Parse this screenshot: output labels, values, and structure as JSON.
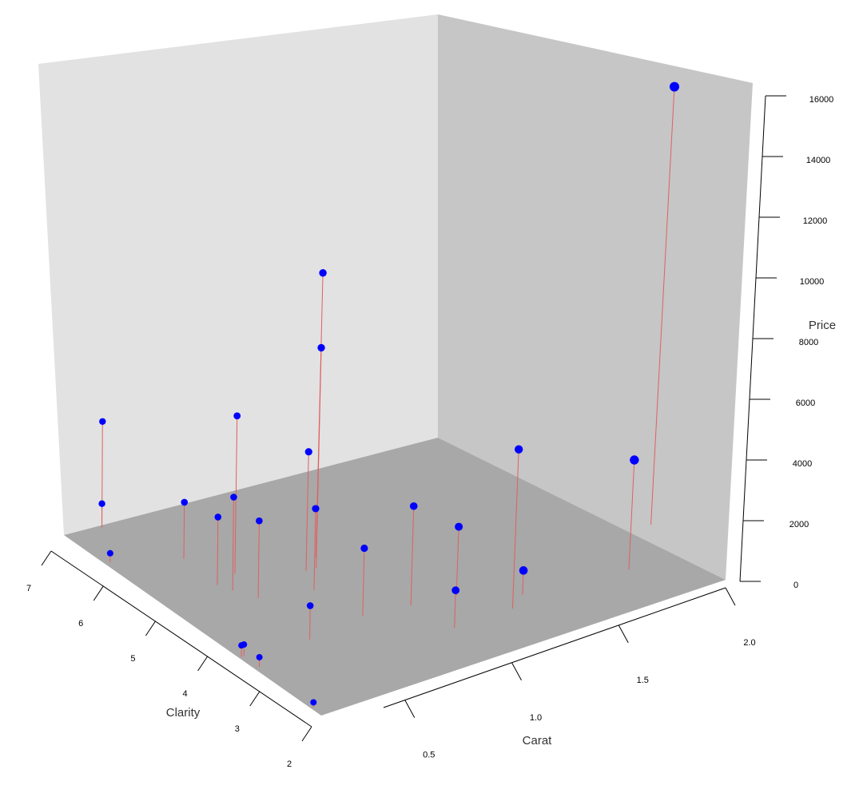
{
  "chart_data": {
    "type": "scatter3d",
    "xlabel": "Carat",
    "ylabel": "Clarity",
    "zlabel": "Price",
    "x_ticks": [
      "0.5",
      "1.0",
      "1.5",
      "2.0"
    ],
    "y_ticks": [
      "2",
      "3",
      "4",
      "5",
      "6",
      "7"
    ],
    "z_ticks": [
      "0",
      "2000",
      "4000",
      "6000",
      "8000",
      "10000",
      "12000",
      "14000",
      "16000"
    ],
    "xlim": [
      0.4,
      2.0
    ],
    "ylim": [
      2,
      7
    ],
    "zlim": [
      0,
      16000
    ],
    "point_color": "#0000ff",
    "drop_line_color": "#e06060",
    "colors": {
      "back_wall": "#e2e2e2",
      "side_wall": "#c6c6c6",
      "floor": "#a8a8a8",
      "axis": "#000000"
    },
    "points": [
      {
        "carat": 0.41,
        "clarity": 2.2,
        "price": 350
      },
      {
        "carat": 0.42,
        "clarity": 3.3,
        "price": 600
      },
      {
        "carat": 0.42,
        "clarity": 3.6,
        "price": 700
      },
      {
        "carat": 0.41,
        "clarity": 3.6,
        "price": 700
      },
      {
        "carat": 0.42,
        "clarity": 6.2,
        "price": 450
      },
      {
        "carat": 0.55,
        "clarity": 7.0,
        "price": 850
      },
      {
        "carat": 0.66,
        "clarity": 3.5,
        "price": 1850
      },
      {
        "carat": 0.63,
        "clarity": 5.8,
        "price": 2700
      },
      {
        "carat": 0.62,
        "clarity": 5.1,
        "price": 3400
      },
      {
        "carat": 0.53,
        "clarity": 6.9,
        "price": 4900
      },
      {
        "carat": 0.64,
        "clarity": 4.9,
        "price": 4700
      },
      {
        "carat": 0.71,
        "clarity": 5.2,
        "price": 7600
      },
      {
        "carat": 0.68,
        "clarity": 4.6,
        "price": 3900
      },
      {
        "carat": 0.89,
        "clarity": 3.6,
        "price": 3400
      },
      {
        "carat": 0.86,
        "clarity": 4.4,
        "price": 3900
      },
      {
        "carat": 0.95,
        "clarity": 4.8,
        "price": 10000
      },
      {
        "carat": 0.91,
        "clarity": 4.8,
        "price": 5500
      },
      {
        "carat": 0.99,
        "clarity": 5.0,
        "price": 12600
      },
      {
        "carat": 1.06,
        "clarity": 3.5,
        "price": 4700
      },
      {
        "carat": 1.09,
        "clarity": 2.8,
        "price": 1850
      },
      {
        "carat": 1.22,
        "clarity": 3.4,
        "price": 3100
      },
      {
        "carat": 1.32,
        "clarity": 2.8,
        "price": 7200
      },
      {
        "carat": 1.4,
        "clarity": 3.0,
        "price": 1050
      },
      {
        "carat": 1.78,
        "clarity": 2.8,
        "price": 4300
      },
      {
        "carat": 2.01,
        "clarity": 3.5,
        "price": 15600
      }
    ]
  }
}
